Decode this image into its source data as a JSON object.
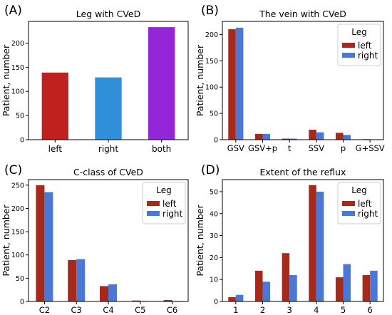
{
  "colors": {
    "left_leg": "#c0201e",
    "right_leg": "#2f8fd8",
    "both_legs": "#9326d8",
    "left_series": "#a52a1c",
    "right_series": "#4a78d6",
    "frame": "#000000"
  },
  "chart_data": [
    {
      "panel_label": "(A)",
      "type": "bar",
      "title": "Leg with CVeD",
      "xlabel": "",
      "ylabel": "Patient, number",
      "categories": [
        "left",
        "right",
        "both"
      ],
      "values": [
        139,
        129,
        233
      ],
      "bar_colors": [
        "#c0201e",
        "#2f8fd8",
        "#9326d8"
      ],
      "ylim": [
        0,
        245
      ],
      "yticks": [
        0,
        50,
        100,
        150,
        200
      ]
    },
    {
      "panel_label": "(B)",
      "type": "bar",
      "title": "The vein with CVeD",
      "xlabel": "",
      "ylabel": "Patient, number",
      "categories": [
        "GSV",
        "GSV+p",
        "t",
        "SSV",
        "p",
        "G+SSV"
      ],
      "series": [
        {
          "name": "left",
          "values": [
            210,
            11,
            2,
            19,
            13,
            1
          ]
        },
        {
          "name": "right",
          "values": [
            213,
            11,
            2,
            14,
            9,
            0
          ]
        }
      ],
      "legend_title": "Leg",
      "legend_position": "top-right",
      "ylim": [
        0,
        225
      ],
      "yticks": [
        0,
        50,
        100,
        150,
        200
      ]
    },
    {
      "panel_label": "(C)",
      "type": "bar",
      "title": "C-class of CVeD",
      "xlabel": "",
      "ylabel": "Patient, number",
      "categories": [
        "C2",
        "C3",
        "C4",
        "C5",
        "C6"
      ],
      "series": [
        {
          "name": "left",
          "values": [
            250,
            89,
            33,
            2,
            3
          ]
        },
        {
          "name": "right",
          "values": [
            235,
            91,
            37,
            1,
            1
          ]
        }
      ],
      "legend_title": "Leg",
      "legend_position": "top-right",
      "ylim": [
        0,
        262
      ],
      "yticks": [
        0,
        50,
        100,
        150,
        200,
        250
      ]
    },
    {
      "panel_label": "(D)",
      "type": "bar",
      "title": "Extent of the reflux",
      "xlabel": "",
      "ylabel": "Patient, number",
      "categories": [
        "1",
        "2",
        "3",
        "4",
        "5",
        "6"
      ],
      "series": [
        {
          "name": "left",
          "values": [
            2,
            14,
            22,
            53,
            11,
            12
          ]
        },
        {
          "name": "right",
          "values": [
            3,
            9,
            12,
            50,
            17,
            14
          ]
        }
      ],
      "legend_title": "Leg",
      "legend_position": "top-right",
      "ylim": [
        0,
        55.5
      ],
      "yticks": [
        0,
        10,
        20,
        30,
        40,
        50
      ]
    }
  ]
}
